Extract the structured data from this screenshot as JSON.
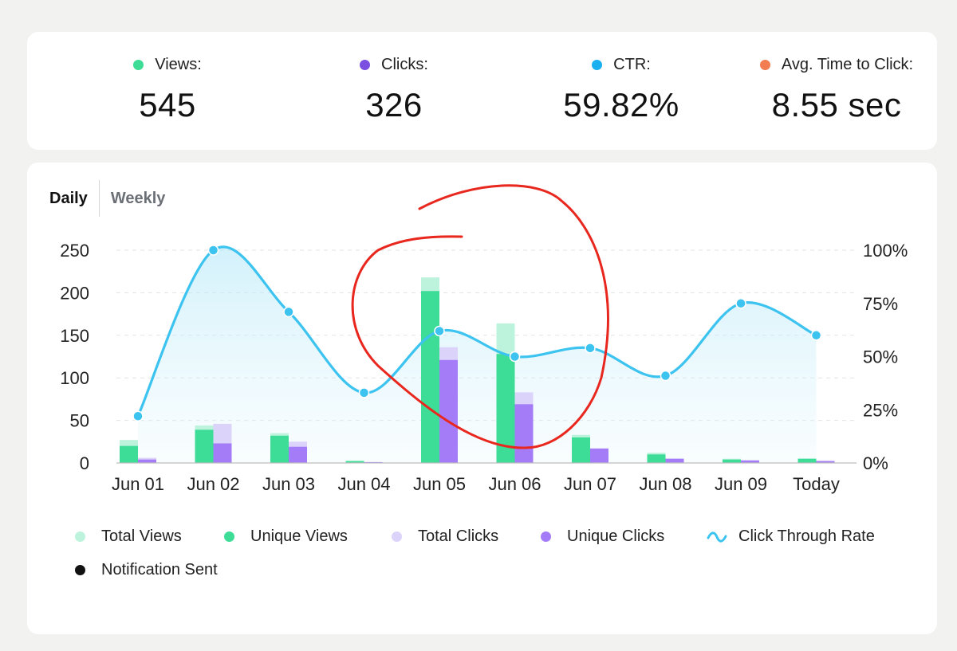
{
  "stats": [
    {
      "label": "Views:",
      "value": "545",
      "color": "#3ddc97"
    },
    {
      "label": "Clicks:",
      "value": "326",
      "color": "#7b4fe0"
    },
    {
      "label": "CTR:",
      "value": "59.82%",
      "color": "#1ab0f0"
    },
    {
      "label": "Avg. Time to Click:",
      "value": "8.55 sec",
      "color": "#f27d52"
    }
  ],
  "tabs": {
    "daily": "Daily",
    "weekly": "Weekly"
  },
  "legend": [
    {
      "label": "Total Views",
      "color": "#bdf3dc",
      "icon": "dot"
    },
    {
      "label": "Unique Views",
      "color": "#3ddc97",
      "icon": "dot"
    },
    {
      "label": "Total Clicks",
      "color": "#dcd3fb",
      "icon": "dot"
    },
    {
      "label": "Unique Clicks",
      "color": "#a57cf7",
      "icon": "dot"
    },
    {
      "label": "Click Through Rate",
      "color": "#3cc3f0",
      "icon": "wave"
    },
    {
      "label": "Notification Sent",
      "color": "#111111",
      "icon": "dot"
    }
  ],
  "chart_data": {
    "type": "bar",
    "categories": [
      "Jun 01",
      "Jun 02",
      "Jun 03",
      "Jun 04",
      "Jun 05",
      "Jun 06",
      "Jun 07",
      "Jun 08",
      "Jun 09",
      "Today"
    ],
    "series": [
      {
        "name": "Total Views",
        "type": "bar",
        "axis": "left",
        "values": [
          27,
          44,
          35,
          3,
          218,
          164,
          33,
          12,
          5,
          5
        ]
      },
      {
        "name": "Unique Views",
        "type": "bar",
        "axis": "left",
        "values": [
          20,
          39,
          32,
          2,
          202,
          128,
          30,
          10,
          4,
          5
        ]
      },
      {
        "name": "Total Clicks",
        "type": "bar",
        "axis": "left",
        "values": [
          6,
          46,
          25,
          1,
          136,
          83,
          17,
          5,
          3,
          3
        ]
      },
      {
        "name": "Unique Clicks",
        "type": "bar",
        "axis": "left",
        "values": [
          4,
          23,
          19,
          1,
          121,
          69,
          17,
          5,
          3,
          2
        ]
      },
      {
        "name": "Click Through Rate",
        "type": "area",
        "axis": "right",
        "values": [
          22,
          100,
          71,
          33,
          62,
          50,
          54,
          41,
          75,
          60
        ]
      }
    ],
    "y_left": {
      "ticks": [
        0,
        50,
        100,
        150,
        200,
        250
      ],
      "range": [
        0,
        250
      ]
    },
    "y_right": {
      "ticks": [
        "0%",
        "25%",
        "50%",
        "75%",
        "100%"
      ],
      "range": [
        0,
        100
      ]
    },
    "colors": {
      "total_views": "#bdf3dc",
      "unique_views": "#3ddc97",
      "total_clicks": "#dcd3fb",
      "unique_clicks": "#a57cf7",
      "ctr_line": "#3cc3f0",
      "annotation": "#e8271e"
    },
    "grid": true,
    "legend_position": "bottom",
    "annotation": "hand-drawn red circle around Jun 05 and Jun 06"
  }
}
